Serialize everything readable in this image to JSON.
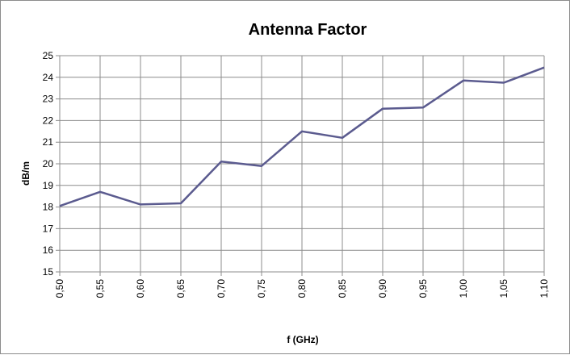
{
  "chart_data": {
    "type": "line",
    "title": "Antenna Factor",
    "xlabel": "f (GHz)",
    "ylabel": "dB/m",
    "categories": [
      "0,50",
      "0,55",
      "0,60",
      "0,65",
      "0,70",
      "0,75",
      "0,80",
      "0,85",
      "0,90",
      "0,95",
      "1,00",
      "1,05",
      "1,10"
    ],
    "series": [
      {
        "values": [
          18.05,
          18.7,
          18.12,
          18.17,
          20.1,
          19.9,
          21.5,
          21.2,
          22.55,
          22.6,
          23.85,
          23.75,
          24.45
        ],
        "color": "#5b5b8f"
      }
    ],
    "ylim": [
      15,
      25
    ],
    "yticks": [
      15,
      16,
      17,
      18,
      19,
      20,
      21,
      22,
      23,
      24,
      25
    ],
    "grid": true,
    "legend": "none"
  }
}
